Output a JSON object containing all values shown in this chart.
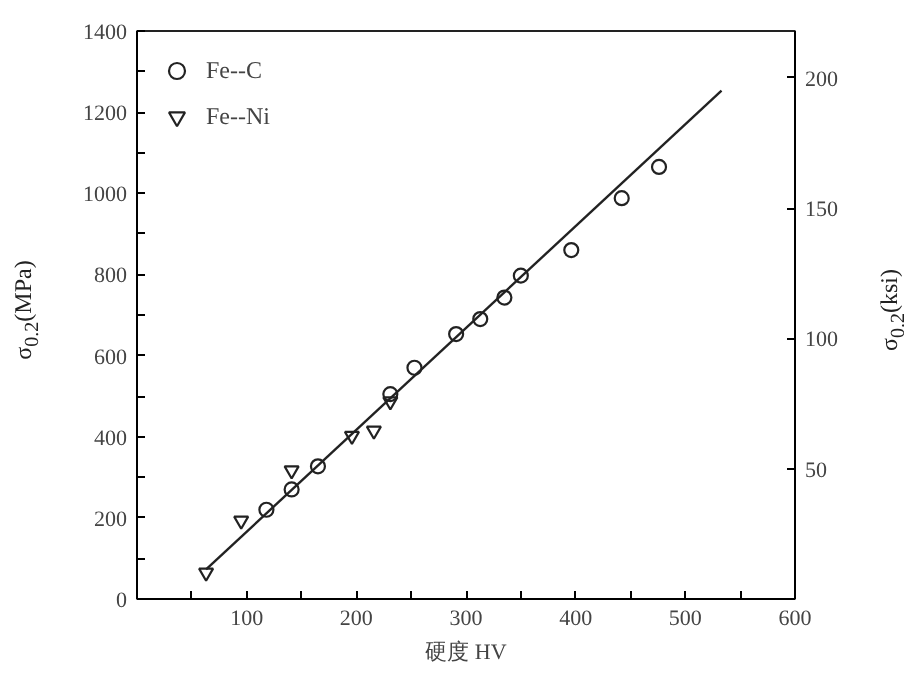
{
  "chart_data": {
    "type": "scatter",
    "xlabel": "硬度 HV",
    "ylabel": "σ$_{0.2}$(MPa)",
    "y2label": "σ$_{0.2}$(ksi)",
    "xlim": [
      0,
      600
    ],
    "ylim": [
      0,
      1400
    ],
    "y2lim": [
      0,
      218
    ],
    "xticks": [
      {
        "value": 50,
        "label": null
      },
      100,
      {
        "value": 150,
        "label": null
      },
      200,
      {
        "value": 250,
        "label": null
      },
      300,
      {
        "value": 350,
        "label": null
      },
      400,
      {
        "value": 450,
        "label": null
      },
      500,
      {
        "value": 550,
        "label": null
      },
      600
    ],
    "yticks": [
      0,
      {
        "value": 100,
        "label": null
      },
      200,
      {
        "value": 300,
        "label": null
      },
      400,
      {
        "value": 500,
        "label": null
      },
      600,
      {
        "value": 700,
        "label": null
      },
      800,
      {
        "value": 900,
        "label": null
      },
      1000,
      {
        "value": 1100,
        "label": null
      },
      1200,
      {
        "value": 1300,
        "label": null
      },
      1400
    ],
    "y2ticks": [
      50,
      100,
      150,
      200
    ],
    "grid": false,
    "legend": "top left",
    "series": [
      {
        "name": "Fe--C",
        "marker": "circle",
        "color": "#222222",
        "x": [
          118,
          141,
          165,
          231,
          253,
          291,
          313,
          335,
          350,
          396,
          442,
          476
        ],
        "values": [
          220,
          270,
          327,
          505,
          570,
          653,
          690,
          743,
          797,
          860,
          988,
          1065
        ]
      },
      {
        "name": "Fe--Ni",
        "marker": "triangle",
        "color": "#222222",
        "x": [
          63,
          95,
          141,
          196,
          216,
          231
        ],
        "values": [
          65,
          193,
          317,
          402,
          415,
          487
        ]
      },
      {
        "type": "line",
        "color": "#222222",
        "x": [
          63,
          533
        ],
        "values": [
          73,
          1253
        ]
      }
    ]
  }
}
